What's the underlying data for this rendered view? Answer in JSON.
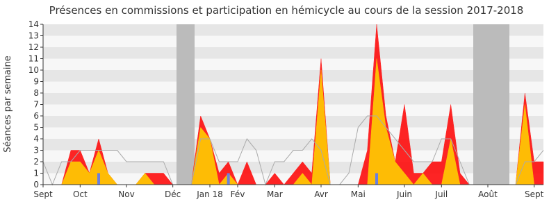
{
  "chart_data": {
    "type": "area",
    "title": "Présences en commissions et participation en hémicycle au cours de la session 2017-2018",
    "y_label": "Séances par semaine",
    "categories": [
      "Sept",
      null,
      null,
      null,
      "Oct",
      null,
      null,
      null,
      null,
      "Nov",
      null,
      null,
      null,
      null,
      "Déc",
      null,
      null,
      null,
      "Jan 18",
      null,
      null,
      "Fév",
      null,
      null,
      null,
      "Mar",
      null,
      null,
      null,
      null,
      "Avr",
      null,
      null,
      null,
      "Mai",
      null,
      null,
      null,
      null,
      "Juin",
      null,
      null,
      null,
      "Juil",
      null,
      null,
      null,
      null,
      "Août",
      null,
      null,
      null,
      null,
      "Sept",
      null
    ],
    "series": [
      {
        "mark": "area",
        "color": "#ff0000",
        "values": [
          0,
          0,
          0,
          3,
          3,
          1,
          4,
          1,
          0,
          0,
          0,
          1,
          1,
          1,
          0,
          0,
          0,
          6,
          4,
          1,
          2,
          0,
          2,
          0,
          0,
          1,
          0,
          1,
          2,
          1,
          11,
          0,
          0,
          0,
          0,
          3,
          14,
          6,
          2,
          7,
          1,
          1,
          2,
          2,
          7,
          1,
          0,
          0,
          0,
          0,
          0,
          0,
          8,
          2,
          2
        ]
      },
      {
        "mark": "area",
        "color": "#ffd700",
        "values": [
          0,
          0,
          0,
          2,
          2,
          1,
          3,
          1,
          0,
          0,
          0,
          1,
          0,
          0,
          0,
          0,
          0,
          5,
          4,
          0,
          1,
          0,
          0,
          0,
          0,
          0,
          0,
          0,
          1,
          0,
          10,
          0,
          0,
          0,
          0,
          0,
          11,
          5,
          2,
          1,
          0,
          1,
          0,
          0,
          4,
          0,
          0,
          0,
          0,
          0,
          0,
          0,
          7,
          0,
          0
        ]
      },
      {
        "mark": "line",
        "color": "#aaaaaa",
        "values": [
          2,
          0,
          2,
          2,
          3,
          3,
          3,
          3,
          3,
          2,
          2,
          2,
          2,
          2,
          0,
          0,
          0,
          4,
          4,
          2,
          2,
          2,
          4,
          3,
          0,
          2,
          2,
          3,
          3,
          4,
          3,
          0,
          0,
          1,
          5,
          6,
          6,
          5,
          4,
          3,
          2,
          2,
          2,
          4,
          4,
          2,
          0,
          0,
          0,
          0,
          0,
          0,
          2,
          2,
          3
        ]
      },
      {
        "mark": "bar",
        "color": "#6a7fe0",
        "values": [
          null,
          null,
          null,
          null,
          null,
          null,
          1,
          null,
          null,
          null,
          null,
          null,
          null,
          null,
          null,
          null,
          null,
          null,
          null,
          null,
          1,
          null,
          null,
          null,
          null,
          null,
          null,
          null,
          null,
          null,
          null,
          null,
          null,
          null,
          null,
          null,
          1,
          null,
          null,
          null,
          null,
          null,
          null,
          null,
          null,
          null,
          null,
          null,
          null,
          null,
          null,
          null,
          null,
          null,
          null
        ]
      }
    ],
    "ylim": [
      0,
      14
    ],
    "yticks": [
      0,
      1,
      2,
      3,
      4,
      5,
      6,
      7,
      8,
      9,
      10,
      11,
      12,
      13,
      14
    ],
    "grid": true
  }
}
